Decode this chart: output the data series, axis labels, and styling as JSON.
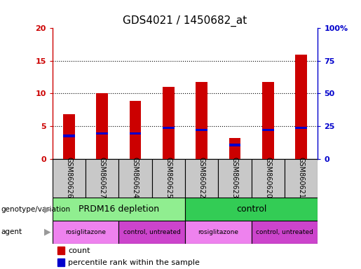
{
  "title": "GDS4021 / 1450682_at",
  "samples": [
    "GSM860626",
    "GSM860627",
    "GSM860624",
    "GSM860625",
    "GSM860622",
    "GSM860623",
    "GSM860620",
    "GSM860621"
  ],
  "count_values": [
    6.8,
    10.0,
    8.9,
    11.0,
    11.8,
    3.2,
    11.8,
    16.0
  ],
  "percentile_values": [
    3.5,
    3.9,
    3.9,
    4.7,
    4.4,
    2.1,
    4.4,
    4.7
  ],
  "ylim_left": [
    0,
    20
  ],
  "ylim_right": [
    0,
    100
  ],
  "yticks_left": [
    0,
    5,
    10,
    15,
    20
  ],
  "yticks_right": [
    0,
    25,
    50,
    75,
    100
  ],
  "ytick_labels_left": [
    "0",
    "5",
    "10",
    "15",
    "20"
  ],
  "ytick_labels_right": [
    "0",
    "25",
    "50",
    "75",
    "100%"
  ],
  "bar_color_count": "#cc0000",
  "bar_color_percentile": "#0000cc",
  "bar_width": 0.35,
  "groups": [
    {
      "label": "PRDM16 depletion",
      "start": 0,
      "end": 4,
      "color": "#90ee90"
    },
    {
      "label": "control",
      "start": 4,
      "end": 8,
      "color": "#33cc55"
    }
  ],
  "agents": [
    {
      "label": "rosiglitazone",
      "start": 0,
      "end": 2,
      "color": "#ee82ee"
    },
    {
      "label": "control, untreated",
      "start": 2,
      "end": 4,
      "color": "#cc44cc"
    },
    {
      "label": "rosiglitazone",
      "start": 4,
      "end": 6,
      "color": "#ee82ee"
    },
    {
      "label": "control, untreated",
      "start": 6,
      "end": 8,
      "color": "#cc44cc"
    }
  ],
  "legend_count_label": "count",
  "legend_percentile_label": "percentile rank within the sample",
  "genotype_label": "genotype/variation",
  "agent_label": "agent",
  "bg_color": "#ffffff",
  "plot_bg_color": "#ffffff",
  "tick_label_color_left": "#cc0000",
  "tick_label_color_right": "#0000cc",
  "title_fontsize": 11,
  "axis_fontsize": 8,
  "label_fontsize": 9,
  "sample_label_fontsize": 7,
  "gray_box_color": "#c8c8c8"
}
